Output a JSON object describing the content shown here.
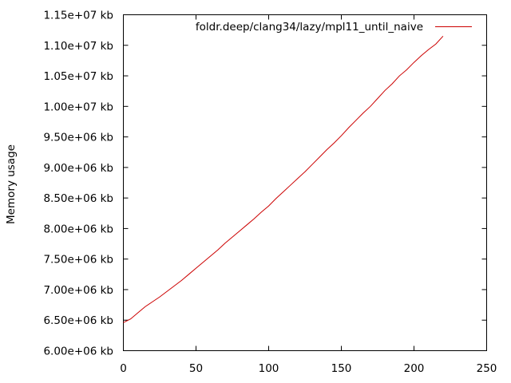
{
  "chart_data": {
    "type": "line",
    "title": "",
    "xlabel": "",
    "ylabel": "Memory usage",
    "xlim": [
      0,
      250
    ],
    "ylim": [
      6000000,
      11500000
    ],
    "grid": false,
    "legend_position": "top-right",
    "x_ticks": [
      0,
      50,
      100,
      150,
      200,
      250
    ],
    "x_tick_labels": [
      "0",
      "50",
      "100",
      "150",
      "200",
      "250"
    ],
    "y_ticks": [
      6000000,
      6500000,
      7000000,
      7500000,
      8000000,
      8500000,
      9000000,
      9500000,
      10000000,
      10500000,
      11000000,
      11500000
    ],
    "y_tick_labels": [
      "6.00e+06 kb",
      "6.50e+06 kb",
      "7.00e+06 kb",
      "7.50e+06 kb",
      "8.00e+06 kb",
      "8.50e+06 kb",
      "9.00e+06 kb",
      "9.50e+06 kb",
      "1.00e+07 kb",
      "1.05e+07 kb",
      "1.10e+07 kb",
      "1.15e+07 kb"
    ],
    "series": [
      {
        "name": "foldr.deep/clang34/lazy/mpl11_until_naive",
        "color": "#cc0000",
        "x": [
          0,
          5,
          10,
          15,
          20,
          25,
          30,
          35,
          40,
          45,
          50,
          55,
          60,
          65,
          70,
          75,
          80,
          85,
          90,
          95,
          100,
          105,
          110,
          115,
          120,
          125,
          130,
          135,
          140,
          145,
          150,
          155,
          160,
          165,
          170,
          175,
          180,
          185,
          190,
          195,
          200,
          205,
          210,
          215,
          220
        ],
        "y": [
          6460000,
          6520000,
          6620000,
          6720000,
          6800000,
          6880000,
          6970000,
          7060000,
          7150000,
          7250000,
          7350000,
          7450000,
          7550000,
          7650000,
          7760000,
          7860000,
          7960000,
          8060000,
          8160000,
          8270000,
          8370000,
          8490000,
          8600000,
          8710000,
          8820000,
          8930000,
          9050000,
          9170000,
          9290000,
          9400000,
          9520000,
          9650000,
          9770000,
          9890000,
          10000000,
          10130000,
          10260000,
          10370000,
          10500000,
          10600000,
          10720000,
          10830000,
          10930000,
          11020000,
          11150000
        ]
      }
    ]
  }
}
